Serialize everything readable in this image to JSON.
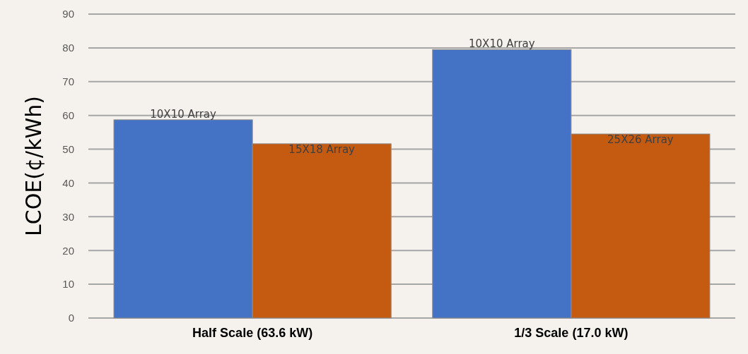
{
  "chart_data": {
    "type": "bar",
    "ylabel": "LCOE(¢/kWh)",
    "categories": [
      "Half Scale (63.6 kW)",
      "1/3 Scale (17.0 kW)"
    ],
    "series": [
      {
        "color": "#4472c4",
        "values": [
          58.7,
          79.5
        ]
      },
      {
        "color": "#c55a11",
        "values": [
          51.6,
          54.5
        ]
      }
    ],
    "annotations": [
      "10X10 Array",
      "15X18 Array",
      "10X10 Array",
      "25X26 Array"
    ],
    "ylim": [
      0,
      90
    ],
    "yticks": [
      0,
      10,
      20,
      30,
      40,
      50,
      60,
      70,
      80,
      90
    ],
    "grid": "y"
  }
}
